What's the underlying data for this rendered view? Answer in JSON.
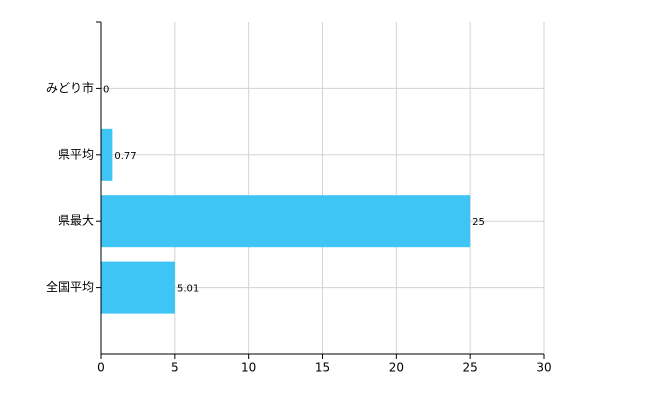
{
  "chart_data": {
    "type": "bar",
    "orientation": "horizontal",
    "categories": [
      "みどり市",
      "県平均",
      "県最大",
      "全国平均"
    ],
    "values": [
      0,
      0.77,
      25,
      5.01
    ],
    "color": "#3fc5f5",
    "xlim": [
      0,
      30
    ],
    "xticks": [
      0,
      5,
      10,
      15,
      20,
      25,
      30
    ],
    "grid": true
  }
}
